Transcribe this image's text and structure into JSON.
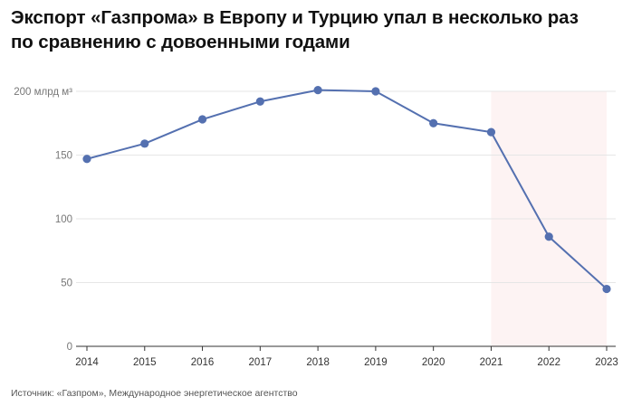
{
  "chart_data": {
    "type": "line",
    "title_lines": [
      "Экспорт «Газпрома» в Европу и Турцию упал в несколько раз",
      "по сравнению с довоенными годами"
    ],
    "y_unit_label": "200 млрд м³",
    "x": [
      "2014",
      "2015",
      "2016",
      "2017",
      "2018",
      "2019",
      "2020",
      "2021",
      "2022",
      "2023"
    ],
    "series": [
      {
        "values": [
          147,
          159,
          178,
          192,
          201,
          200,
          175,
          168,
          86,
          45
        ]
      }
    ],
    "ylim": [
      0,
      200
    ],
    "yticks": [
      0,
      50,
      100,
      150,
      200
    ],
    "ytick_labels": [
      "0",
      "50",
      "100",
      "150",
      "200 млрд м³"
    ],
    "highlight_range": [
      "2021",
      "2023"
    ],
    "grid": true,
    "colors": {
      "line": "#5470b0",
      "highlight": "#fdf3f3",
      "grid": "#e6e6e6",
      "axis": "#333333"
    }
  },
  "source": "Источник: «Газпром», Международное энергетическое агентство"
}
